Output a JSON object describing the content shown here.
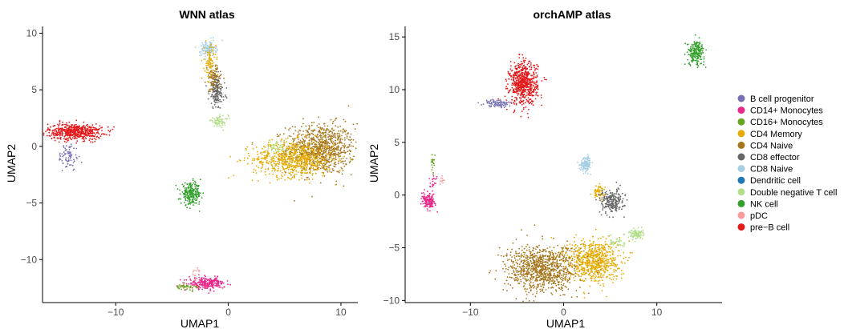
{
  "chart_data": [
    {
      "type": "scatter",
      "title": "WNN atlas",
      "xlabel": "UMAP1",
      "ylabel": "UMAP2",
      "xlim": [
        -16.5,
        11.5
      ],
      "ylim": [
        -13.8,
        10.6
      ],
      "xticks": [
        -10,
        0,
        10
      ],
      "yticks": [
        -10,
        -5,
        0,
        5,
        10
      ],
      "xtick_labels": [
        "−10",
        "0",
        "10"
      ],
      "ytick_labels": [
        "−10",
        "−5",
        "0",
        "5",
        "10"
      ],
      "grid": false,
      "clusters": [
        {
          "cell_type": "CD4 Naive",
          "cx": 8.2,
          "cy": -0.2,
          "sx": 1.5,
          "sy": 1.1,
          "n": 900
        },
        {
          "cell_type": "CD4 Memory",
          "cx": 5.8,
          "cy": -1.1,
          "sx": 1.8,
          "sy": 0.8,
          "n": 700
        },
        {
          "cell_type": "Double negative T cell",
          "cx": 4.3,
          "cy": -0.1,
          "sx": 0.4,
          "sy": 0.35,
          "n": 40
        },
        {
          "cell_type": "pre-B cell",
          "cx": -13.6,
          "cy": 1.3,
          "sx": 1.2,
          "sy": 0.35,
          "n": 550
        },
        {
          "cell_type": "B cell progenitor",
          "cx": -14.2,
          "cy": -0.9,
          "sx": 0.45,
          "sy": 0.6,
          "n": 80
        },
        {
          "cell_type": "CD8 Naive",
          "cx": -1.8,
          "cy": 8.6,
          "sx": 0.35,
          "sy": 0.35,
          "n": 120
        },
        {
          "cell_type": "CD4 Memory",
          "cx": -1.6,
          "cy": 7.4,
          "sx": 0.25,
          "sy": 0.8,
          "n": 90
        },
        {
          "cell_type": "CD4 Naive",
          "cx": -1.3,
          "cy": 5.9,
          "sx": 0.3,
          "sy": 0.6,
          "n": 110
        },
        {
          "cell_type": "CD8 effector",
          "cx": -1.0,
          "cy": 4.8,
          "sx": 0.35,
          "sy": 0.7,
          "n": 140
        },
        {
          "cell_type": "Double negative T cell",
          "cx": -0.8,
          "cy": 2.2,
          "sx": 0.4,
          "sy": 0.25,
          "n": 70
        },
        {
          "cell_type": "NK cell",
          "cx": -3.3,
          "cy": -4.2,
          "sx": 0.45,
          "sy": 0.45,
          "n": 240
        },
        {
          "cell_type": "CD14+ Monocytes",
          "cx": -1.9,
          "cy": -12.1,
          "sx": 0.8,
          "sy": 0.25,
          "n": 260
        },
        {
          "cell_type": "CD16+ Monocytes",
          "cx": -3.8,
          "cy": -12.4,
          "sx": 0.6,
          "sy": 0.12,
          "n": 40
        },
        {
          "cell_type": "pDC",
          "cx": -2.9,
          "cy": -11.3,
          "sx": 0.2,
          "sy": 0.4,
          "n": 12
        }
      ]
    },
    {
      "type": "scatter",
      "title": "orchAMP atlas",
      "xlabel": "UMAP1",
      "ylabel": "UMAP2",
      "xlim": [
        -17.0,
        17.0
      ],
      "ylim": [
        -10.2,
        16.0
      ],
      "xticks": [
        -10,
        0,
        10
      ],
      "yticks": [
        -10,
        -5,
        0,
        5,
        10,
        15
      ],
      "xtick_labels": [
        "−10",
        "0",
        "10"
      ],
      "ytick_labels": [
        "−10",
        "−5",
        "0",
        "5",
        "10",
        "15"
      ],
      "grid": false,
      "clusters": [
        {
          "cell_type": "pre-B cell",
          "cx": -4.3,
          "cy": 10.6,
          "sx": 0.75,
          "sy": 1.0,
          "n": 650
        },
        {
          "cell_type": "B cell progenitor",
          "cx": -7.0,
          "cy": 8.7,
          "sx": 0.7,
          "sy": 0.2,
          "n": 90
        },
        {
          "cell_type": "NK cell",
          "cx": 14.2,
          "cy": 13.5,
          "sx": 0.45,
          "sy": 0.55,
          "n": 200
        },
        {
          "cell_type": "CD8 Naive",
          "cx": 2.4,
          "cy": 3.0,
          "sx": 0.3,
          "sy": 0.35,
          "n": 120
        },
        {
          "cell_type": "CD4 Memory",
          "cx": 3.8,
          "cy": 0.3,
          "sx": 0.3,
          "sy": 0.3,
          "n": 60
        },
        {
          "cell_type": "CD8 effector",
          "cx": 5.2,
          "cy": -0.6,
          "sx": 0.65,
          "sy": 0.55,
          "n": 220
        },
        {
          "cell_type": "Double negative T cell",
          "cx": 7.7,
          "cy": -3.7,
          "sx": 0.4,
          "sy": 0.25,
          "n": 90
        },
        {
          "cell_type": "Double negative T cell",
          "cx": 5.8,
          "cy": -4.5,
          "sx": 0.4,
          "sy": 0.3,
          "n": 40
        },
        {
          "cell_type": "CD4 Memory",
          "cx": 3.2,
          "cy": -6.2,
          "sx": 1.4,
          "sy": 1.0,
          "n": 700
        },
        {
          "cell_type": "CD4 Naive",
          "cx": -2.3,
          "cy": -7.0,
          "sx": 1.9,
          "sy": 1.1,
          "n": 950
        },
        {
          "cell_type": "CD14+ Monocytes",
          "cx": -14.5,
          "cy": -0.6,
          "sx": 0.35,
          "sy": 0.35,
          "n": 140
        },
        {
          "cell_type": "CD16+ Monocytes",
          "cx": -14.0,
          "cy": 2.8,
          "sx": 0.12,
          "sy": 0.35,
          "n": 20
        },
        {
          "cell_type": "CD14+ Monocytes",
          "cx": -14.0,
          "cy": 1.2,
          "sx": 0.2,
          "sy": 0.4,
          "n": 20
        },
        {
          "cell_type": "pDC",
          "cx": -13.0,
          "cy": 1.4,
          "sx": 0.15,
          "sy": 0.2,
          "n": 10
        }
      ]
    }
  ],
  "legend": {
    "placement": "right",
    "items": [
      {
        "label": "B cell progenitor",
        "color": "#7570b3"
      },
      {
        "label": "CD14+ Monocytes",
        "color": "#e7298a"
      },
      {
        "label": "CD16+ Monocytes",
        "color": "#66a61e"
      },
      {
        "label": "CD4 Memory",
        "color": "#e6ab02"
      },
      {
        "label": "CD4 Naive",
        "color": "#a6761d"
      },
      {
        "label": "CD8 effector",
        "color": "#666666"
      },
      {
        "label": "CD8 Naive",
        "color": "#a6cee3"
      },
      {
        "label": "Dendritic cell",
        "color": "#1f78b4"
      },
      {
        "label": "Double negative T cell",
        "color": "#b2df8a"
      },
      {
        "label": "NK cell",
        "color": "#33a02c"
      },
      {
        "label": "pDC",
        "color": "#fb9a99"
      },
      {
        "label": "pre−B cell",
        "color": "#e31a1c"
      }
    ]
  }
}
